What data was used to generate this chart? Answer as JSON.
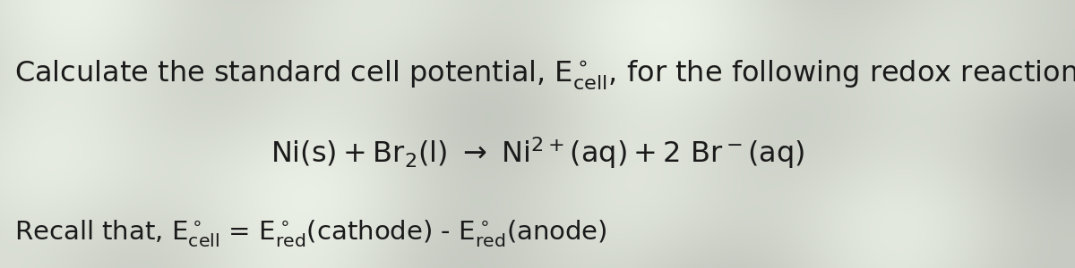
{
  "background_color": "#e8e8e8",
  "text_color": "#1a1a1a",
  "line1_left_text": "Calculate the standard cell potential, E",
  "line1_superscript": "°",
  "line1_sub": "cell",
  "line1_right_text": ", for the following redox reaction.",
  "line2_text": "Ni(s) + Br₂(l) → Ni²⁺(aq) + 2 Br⁻(aq)",
  "line3_left": "Recall that, E",
  "line3_sup1": "°",
  "line3_sub1": "cell",
  "line3_mid": " = E",
  "line3_sup2": "°",
  "line3_sub2": "red",
  "line3_right1": "(cathode) - E",
  "line3_sup3": "°",
  "line3_sub3": "red",
  "line3_right2": "(anode)",
  "fontsize_main": 23,
  "fontsize_small": 21,
  "fig_width": 12.0,
  "fig_height": 3.0,
  "dpi": 100
}
